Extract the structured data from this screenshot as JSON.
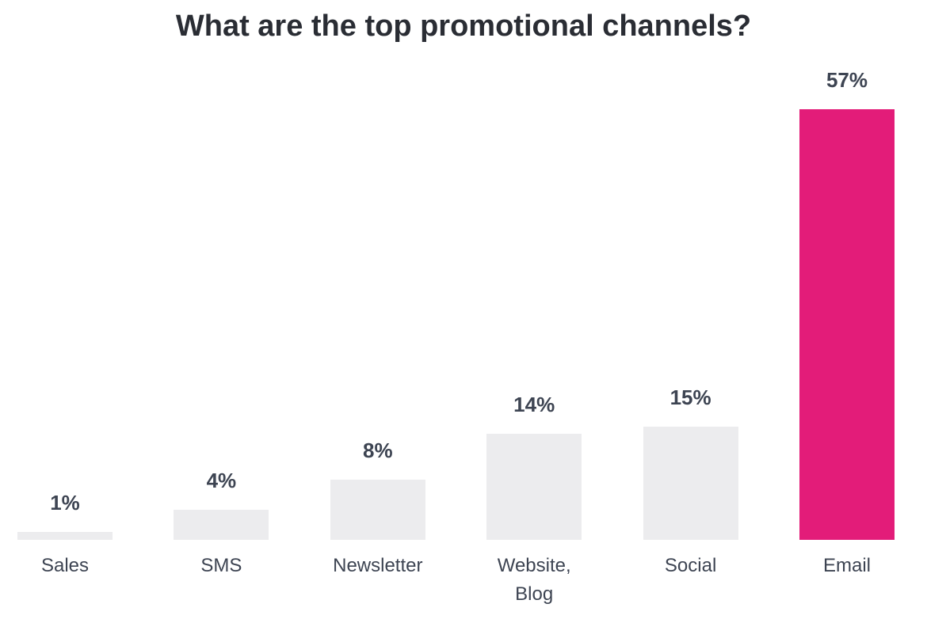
{
  "chart_data": {
    "type": "bar",
    "title": "What are the top promotional channels?",
    "categories": [
      "Sales",
      "SMS",
      "Newsletter",
      "Website, Blog",
      "Social",
      "Email"
    ],
    "values": [
      1,
      4,
      8,
      14,
      15,
      57
    ],
    "value_labels": [
      "1%",
      "4%",
      "8%",
      "14%",
      "15%",
      "57%"
    ],
    "colors": [
      "#ececee",
      "#ececee",
      "#ececee",
      "#ececee",
      "#ececee",
      "#e31c79"
    ]
  }
}
